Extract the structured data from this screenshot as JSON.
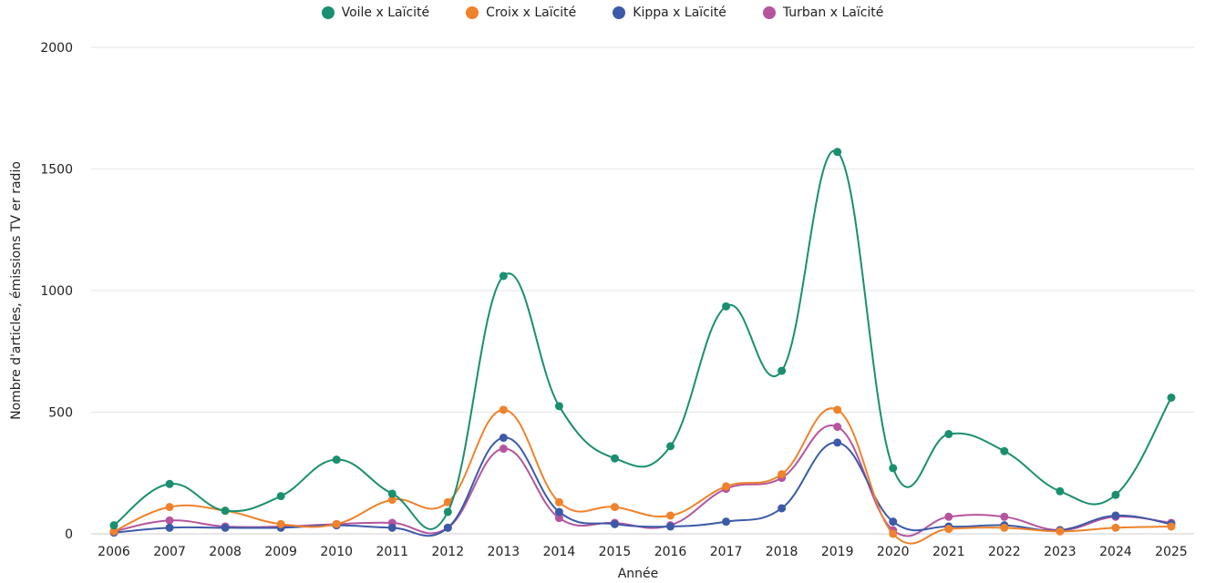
{
  "chart_data": {
    "type": "line",
    "title": "",
    "xlabel": "Année",
    "ylabel": "Nombre d'articles, émissions TV er radio",
    "ylim": [
      0,
      2000
    ],
    "yticks": [
      0,
      500,
      1000,
      1500,
      2000
    ],
    "grid": true,
    "legend_position": "top-center",
    "categories": [
      "2006",
      "2007",
      "2008",
      "2009",
      "2010",
      "2011",
      "2012",
      "2013",
      "2014",
      "2015",
      "2016",
      "2017",
      "2018",
      "2019",
      "2020",
      "2021",
      "2022",
      "2023",
      "2024",
      "2025"
    ],
    "series": [
      {
        "name": "Voile x Laïcité",
        "color": "#1a8f6f",
        "values": [
          35,
          205,
          95,
          155,
          305,
          165,
          90,
          1060,
          525,
          310,
          360,
          935,
          670,
          1570,
          270,
          410,
          340,
          175,
          160,
          560
        ]
      },
      {
        "name": "Croix x Laïcité",
        "color": "#f0822b",
        "values": [
          10,
          110,
          95,
          40,
          40,
          140,
          130,
          510,
          130,
          110,
          75,
          195,
          245,
          510,
          0,
          20,
          25,
          10,
          25,
          30
        ]
      },
      {
        "name": "Kippa x Laïcité",
        "color": "#3d5aa8",
        "values": [
          5,
          25,
          25,
          25,
          35,
          25,
          25,
          395,
          90,
          40,
          30,
          50,
          105,
          375,
          50,
          30,
          35,
          15,
          75,
          40
        ]
      },
      {
        "name": "Turban x Laïcité",
        "color": "#b4559e",
        "values": [
          10,
          55,
          30,
          30,
          40,
          45,
          25,
          350,
          65,
          45,
          35,
          185,
          230,
          440,
          15,
          70,
          70,
          15,
          70,
          45
        ]
      }
    ]
  }
}
